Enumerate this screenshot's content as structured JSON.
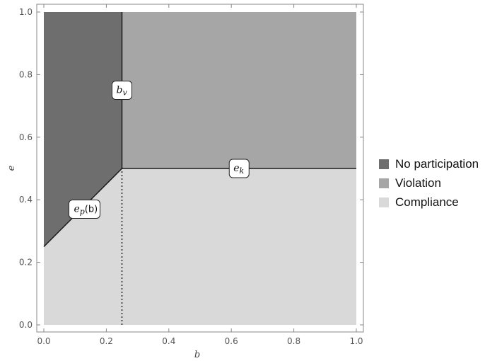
{
  "chart_data": {
    "type": "area",
    "title": "",
    "xlabel": "b",
    "ylabel": "e",
    "xlim": [
      0,
      1
    ],
    "ylim": [
      0,
      1
    ],
    "x_ticks": [
      "0.0",
      "0.2",
      "0.4",
      "0.6",
      "0.8",
      "1.0"
    ],
    "y_ticks": [
      "0.0",
      "0.2",
      "0.4",
      "0.6",
      "0.8",
      "1.0"
    ],
    "regions": [
      {
        "name": "No participation",
        "color": "#6e6e6e",
        "polygon": [
          [
            0,
            0.25
          ],
          [
            0.25,
            0.5
          ],
          [
            0.25,
            1
          ],
          [
            0,
            1
          ]
        ]
      },
      {
        "name": "Violation",
        "color": "#a6a6a6",
        "polygon": [
          [
            0.25,
            0.5
          ],
          [
            1,
            0.5
          ],
          [
            1,
            1
          ],
          [
            0.25,
            1
          ]
        ]
      },
      {
        "name": "Compliance",
        "color": "#d9d9d9",
        "polygon": [
          [
            0,
            0
          ],
          [
            1,
            0
          ],
          [
            1,
            0.5
          ],
          [
            0.25,
            0.5
          ],
          [
            0,
            0.25
          ]
        ]
      }
    ],
    "boundaries": [
      {
        "label": "e_p(b)",
        "label_main": "e",
        "label_sub": "p",
        "label_suffix": "(b)",
        "points": [
          [
            0,
            0.25
          ],
          [
            0.25,
            0.5
          ]
        ],
        "label_at": [
          0.13,
          0.37
        ],
        "style": "solid"
      },
      {
        "label": "b_v",
        "label_main": "b",
        "label_sub": "v",
        "label_suffix": "",
        "points": [
          [
            0.25,
            0.5
          ],
          [
            0.25,
            1
          ]
        ],
        "label_at": [
          0.25,
          0.75
        ],
        "style": "solid"
      },
      {
        "label": "e_k",
        "label_main": "e",
        "label_sub": "k",
        "label_suffix": "",
        "points": [
          [
            0.25,
            0.5
          ],
          [
            1,
            0.5
          ]
        ],
        "label_at": [
          0.625,
          0.5
        ],
        "style": "solid"
      },
      {
        "label": "",
        "points": [
          [
            0.25,
            0
          ],
          [
            0.25,
            0.5
          ]
        ],
        "style": "dotted"
      }
    ],
    "legend": {
      "position": "right",
      "entries": [
        {
          "label": "No participation",
          "color": "#6e6e6e"
        },
        {
          "label": "Violation",
          "color": "#a6a6a6"
        },
        {
          "label": "Compliance",
          "color": "#d9d9d9"
        }
      ]
    }
  }
}
